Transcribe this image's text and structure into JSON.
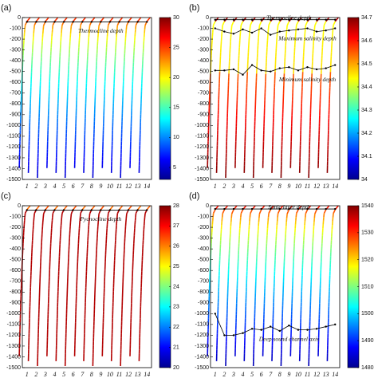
{
  "chart_data": [
    {
      "type": "profile",
      "label": "(a)",
      "categories": [
        "1",
        "2",
        "3",
        "4",
        "5",
        "6",
        "7",
        "8",
        "9",
        "10",
        "11",
        "12",
        "13",
        "14"
      ],
      "ylim": [
        -1500,
        0
      ],
      "yticks": [
        0,
        -100,
        -200,
        -300,
        -400,
        -500,
        -600,
        -700,
        -800,
        -900,
        -1000,
        -1100,
        -1200,
        -1300,
        -1400,
        -1500
      ],
      "colorbar": {
        "lim": [
          3,
          30
        ],
        "ticks": [
          5,
          10,
          15,
          20,
          25,
          30
        ]
      },
      "series": [
        {
          "name": "Thermocline depth",
          "color": "#000000",
          "values": [
            -40,
            -40,
            -40,
            -40,
            -40,
            -40,
            -40,
            -40,
            -40,
            -40,
            -40,
            -40,
            -40,
            -40
          ]
        }
      ]
    },
    {
      "type": "profile",
      "label": "(b)",
      "categories": [
        "1",
        "2",
        "3",
        "4",
        "5",
        "6",
        "7",
        "8",
        "9",
        "10",
        "11",
        "12",
        "13",
        "14"
      ],
      "ylim": [
        -1500,
        0
      ],
      "yticks": [
        0,
        -100,
        -200,
        -300,
        -400,
        -500,
        -600,
        -700,
        -800,
        -900,
        -1000,
        -1100,
        -1200,
        -1300,
        -1400,
        -1500
      ],
      "colorbar": {
        "lim": [
          34,
          34.7
        ],
        "ticks": [
          34,
          34.1,
          34.2,
          34.3,
          34.4,
          34.5,
          34.6,
          34.7
        ]
      },
      "series": [
        {
          "name": "Thermocline depth",
          "color": "#000000",
          "values": [
            -20,
            -20,
            -20,
            -20,
            -20,
            -20,
            -20,
            -20,
            -20,
            -20,
            -20,
            -20,
            -20,
            -20
          ]
        },
        {
          "name": "Maximum salinity depth",
          "color": "#000000",
          "values": [
            -100,
            -130,
            -150,
            -110,
            -140,
            -100,
            -160,
            -130,
            -120,
            -110,
            -100,
            -130,
            -120,
            -100
          ]
        },
        {
          "name": "Minimum salinity depth",
          "color": "#000000",
          "values": [
            -490,
            -490,
            -480,
            -530,
            -440,
            -490,
            -500,
            -470,
            -460,
            -490,
            -460,
            -480,
            -470,
            -440
          ]
        }
      ]
    },
    {
      "type": "profile",
      "label": "(c)",
      "categories": [
        "1",
        "2",
        "3",
        "4",
        "5",
        "6",
        "7",
        "8",
        "9",
        "10",
        "11",
        "12",
        "13",
        "14"
      ],
      "ylim": [
        -1500,
        0
      ],
      "yticks": [
        0,
        -100,
        -200,
        -300,
        -400,
        -500,
        -600,
        -700,
        -800,
        -900,
        -1000,
        -1100,
        -1200,
        -1300,
        -1400,
        -1500
      ],
      "colorbar": {
        "lim": [
          20,
          28
        ],
        "ticks": [
          20,
          21,
          22,
          23,
          24,
          25,
          26,
          27,
          28
        ]
      },
      "series": [
        {
          "name": "Pycnocline depth",
          "color": "#000000",
          "values": [
            -40,
            -40,
            -40,
            -40,
            -40,
            -40,
            -40,
            -40,
            -40,
            -40,
            -40,
            -40,
            -40,
            -40
          ]
        }
      ]
    },
    {
      "type": "profile",
      "label": "(d)",
      "categories": [
        "1",
        "2",
        "3",
        "4",
        "5",
        "6",
        "7",
        "8",
        "9",
        "10",
        "11",
        "12",
        "13",
        "14"
      ],
      "ylim": [
        -1500,
        0
      ],
      "yticks": [
        0,
        -100,
        -200,
        -300,
        -400,
        -500,
        -600,
        -700,
        -800,
        -900,
        -1000,
        -1100,
        -1200,
        -1300,
        -1400,
        -1500
      ],
      "colorbar": {
        "lim": [
          1480,
          1540
        ],
        "ticks": [
          1480,
          1490,
          1500,
          1510,
          1520,
          1530,
          1540
        ]
      },
      "series": [
        {
          "name": "Sonic layer depth",
          "color": "#000000",
          "values": [
            -30,
            -30,
            -30,
            -30,
            -30,
            -30,
            -30,
            -30,
            -30,
            -30,
            -30,
            -30,
            -30,
            -30
          ]
        },
        {
          "name": "Deep sound channel axis",
          "color": "#000000",
          "values": [
            -1000,
            -1200,
            -1200,
            -1180,
            -1140,
            -1150,
            -1120,
            -1160,
            -1110,
            -1150,
            -1150,
            -1140,
            -1120,
            -1100
          ]
        }
      ]
    }
  ]
}
